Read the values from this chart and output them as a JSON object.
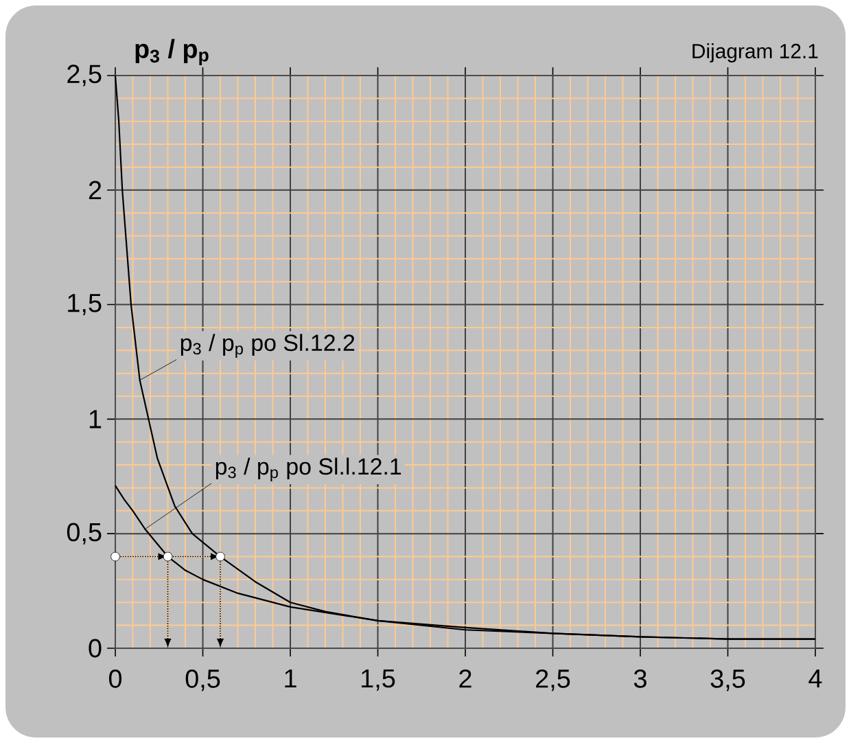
{
  "chart_data": {
    "type": "line",
    "title": "Dijagram 12.1",
    "ylabel": "p$_{3}$ / p$_{p}$",
    "x": [
      0,
      0.02,
      0.04,
      0.09,
      0.14,
      0.24,
      0.34,
      0.44,
      0.6,
      0.8,
      1.0,
      1.2,
      1.5,
      2.0,
      2.5,
      3.0,
      3.5,
      4.0
    ],
    "series": [
      {
        "color": "#000000",
        "values": [
          2.5,
          2.3,
          2.0,
          1.5,
          1.17,
          0.83,
          0.62,
          0.5,
          0.4,
          0.29,
          0.2,
          0.16,
          0.12,
          0.08,
          0.065,
          0.05,
          0.04,
          0.04
        ]
      },
      {
        "color": "#000000",
        "x": [
          0,
          0.05,
          0.1,
          0.17,
          0.3,
          0.4,
          0.5,
          0.7,
          1.0,
          1.5,
          2.0,
          2.5,
          3.0,
          3.5,
          4.0
        ],
        "values": [
          0.71,
          0.65,
          0.6,
          0.52,
          0.4,
          0.34,
          0.3,
          0.24,
          0.18,
          0.12,
          0.09,
          0.065,
          0.05,
          0.04,
          0.04
        ]
      },
      {
        "type": "scatter",
        "marker": "circle",
        "color": "#ffffff",
        "x": [
          0,
          0.3,
          0.6
        ],
        "values": [
          0.4,
          0.4,
          0.4
        ]
      }
    ],
    "xlim": [
      0,
      4
    ],
    "ylim": [
      0,
      2.5
    ],
    "xticks": [
      0,
      {
        "value": 0.1,
        "label": null
      },
      {
        "value": 0.2,
        "label": null
      },
      {
        "value": 0.3,
        "label": null
      },
      {
        "value": 0.4,
        "label": null
      },
      {
        "value": 0.5,
        "label": "0,5"
      },
      {
        "value": 0.6,
        "label": null
      },
      {
        "value": 0.7,
        "label": null
      },
      {
        "value": 0.8,
        "label": null
      },
      {
        "value": 0.9,
        "label": null
      },
      1,
      {
        "value": 1.1,
        "label": null
      },
      {
        "value": 1.2,
        "label": null
      },
      {
        "value": 1.3,
        "label": null
      },
      {
        "value": 1.4,
        "label": null
      },
      {
        "value": 1.5,
        "label": "1,5"
      },
      {
        "value": 1.6,
        "label": null
      },
      {
        "value": 1.7,
        "label": null
      },
      {
        "value": 1.8,
        "label": null
      },
      {
        "value": 1.9,
        "label": null
      },
      2,
      {
        "value": 2.1,
        "label": null
      },
      {
        "value": 2.2,
        "label": null
      },
      {
        "value": 2.3,
        "label": null
      },
      {
        "value": 2.4,
        "label": null
      },
      {
        "value": 2.5,
        "label": "2,5"
      },
      {
        "value": 2.6,
        "label": null
      },
      {
        "value": 2.7,
        "label": null
      },
      {
        "value": 2.8,
        "label": null
      },
      {
        "value": 2.9,
        "label": null
      },
      3,
      {
        "value": 3.1,
        "label": null
      },
      {
        "value": 3.2,
        "label": null
      },
      {
        "value": 3.3,
        "label": null
      },
      {
        "value": 3.4,
        "label": null
      },
      {
        "value": 3.5,
        "label": "3,5"
      },
      {
        "value": 3.6,
        "label": null
      },
      {
        "value": 3.7,
        "label": null
      },
      {
        "value": 3.8,
        "label": null
      },
      {
        "value": 3.9,
        "label": null
      },
      4
    ],
    "yticks": [
      0,
      {
        "value": 0.1,
        "label": null
      },
      {
        "value": 0.2,
        "label": null
      },
      {
        "value": 0.3,
        "label": null
      },
      {
        "value": 0.4,
        "label": null
      },
      {
        "value": 0.5,
        "label": "0,5"
      },
      {
        "value": 0.6,
        "label": null
      },
      {
        "value": 0.7,
        "label": null
      },
      {
        "value": 0.8,
        "label": null
      },
      {
        "value": 0.9,
        "label": null
      },
      1,
      {
        "value": 1.1,
        "label": null
      },
      {
        "value": 1.2,
        "label": null
      },
      {
        "value": 1.3,
        "label": null
      },
      {
        "value": 1.4,
        "label": null
      },
      {
        "value": 1.5,
        "label": "1,5"
      },
      {
        "value": 1.6,
        "label": null
      },
      {
        "value": 1.7,
        "label": null
      },
      {
        "value": 1.8,
        "label": null
      },
      {
        "value": 1.9,
        "label": null
      },
      2,
      {
        "value": 2.1,
        "label": null
      },
      {
        "value": 2.2,
        "label": null
      },
      {
        "value": 2.3,
        "label": null
      },
      {
        "value": 2.4,
        "label": null
      },
      {
        "value": 2.5,
        "label": "2,5"
      }
    ],
    "grid": true,
    "line_style": "solid",
    "annotations": [
      {
        "text": "p$_{3}$ / p$_{p}$  po Sl.12.2",
        "x": 0.14,
        "y": 1.17
      },
      {
        "text": "p$_{3}$ / p$_{p}$  po Sl.l.12.1",
        "x": 0.17,
        "y": 0.52
      }
    ]
  }
}
